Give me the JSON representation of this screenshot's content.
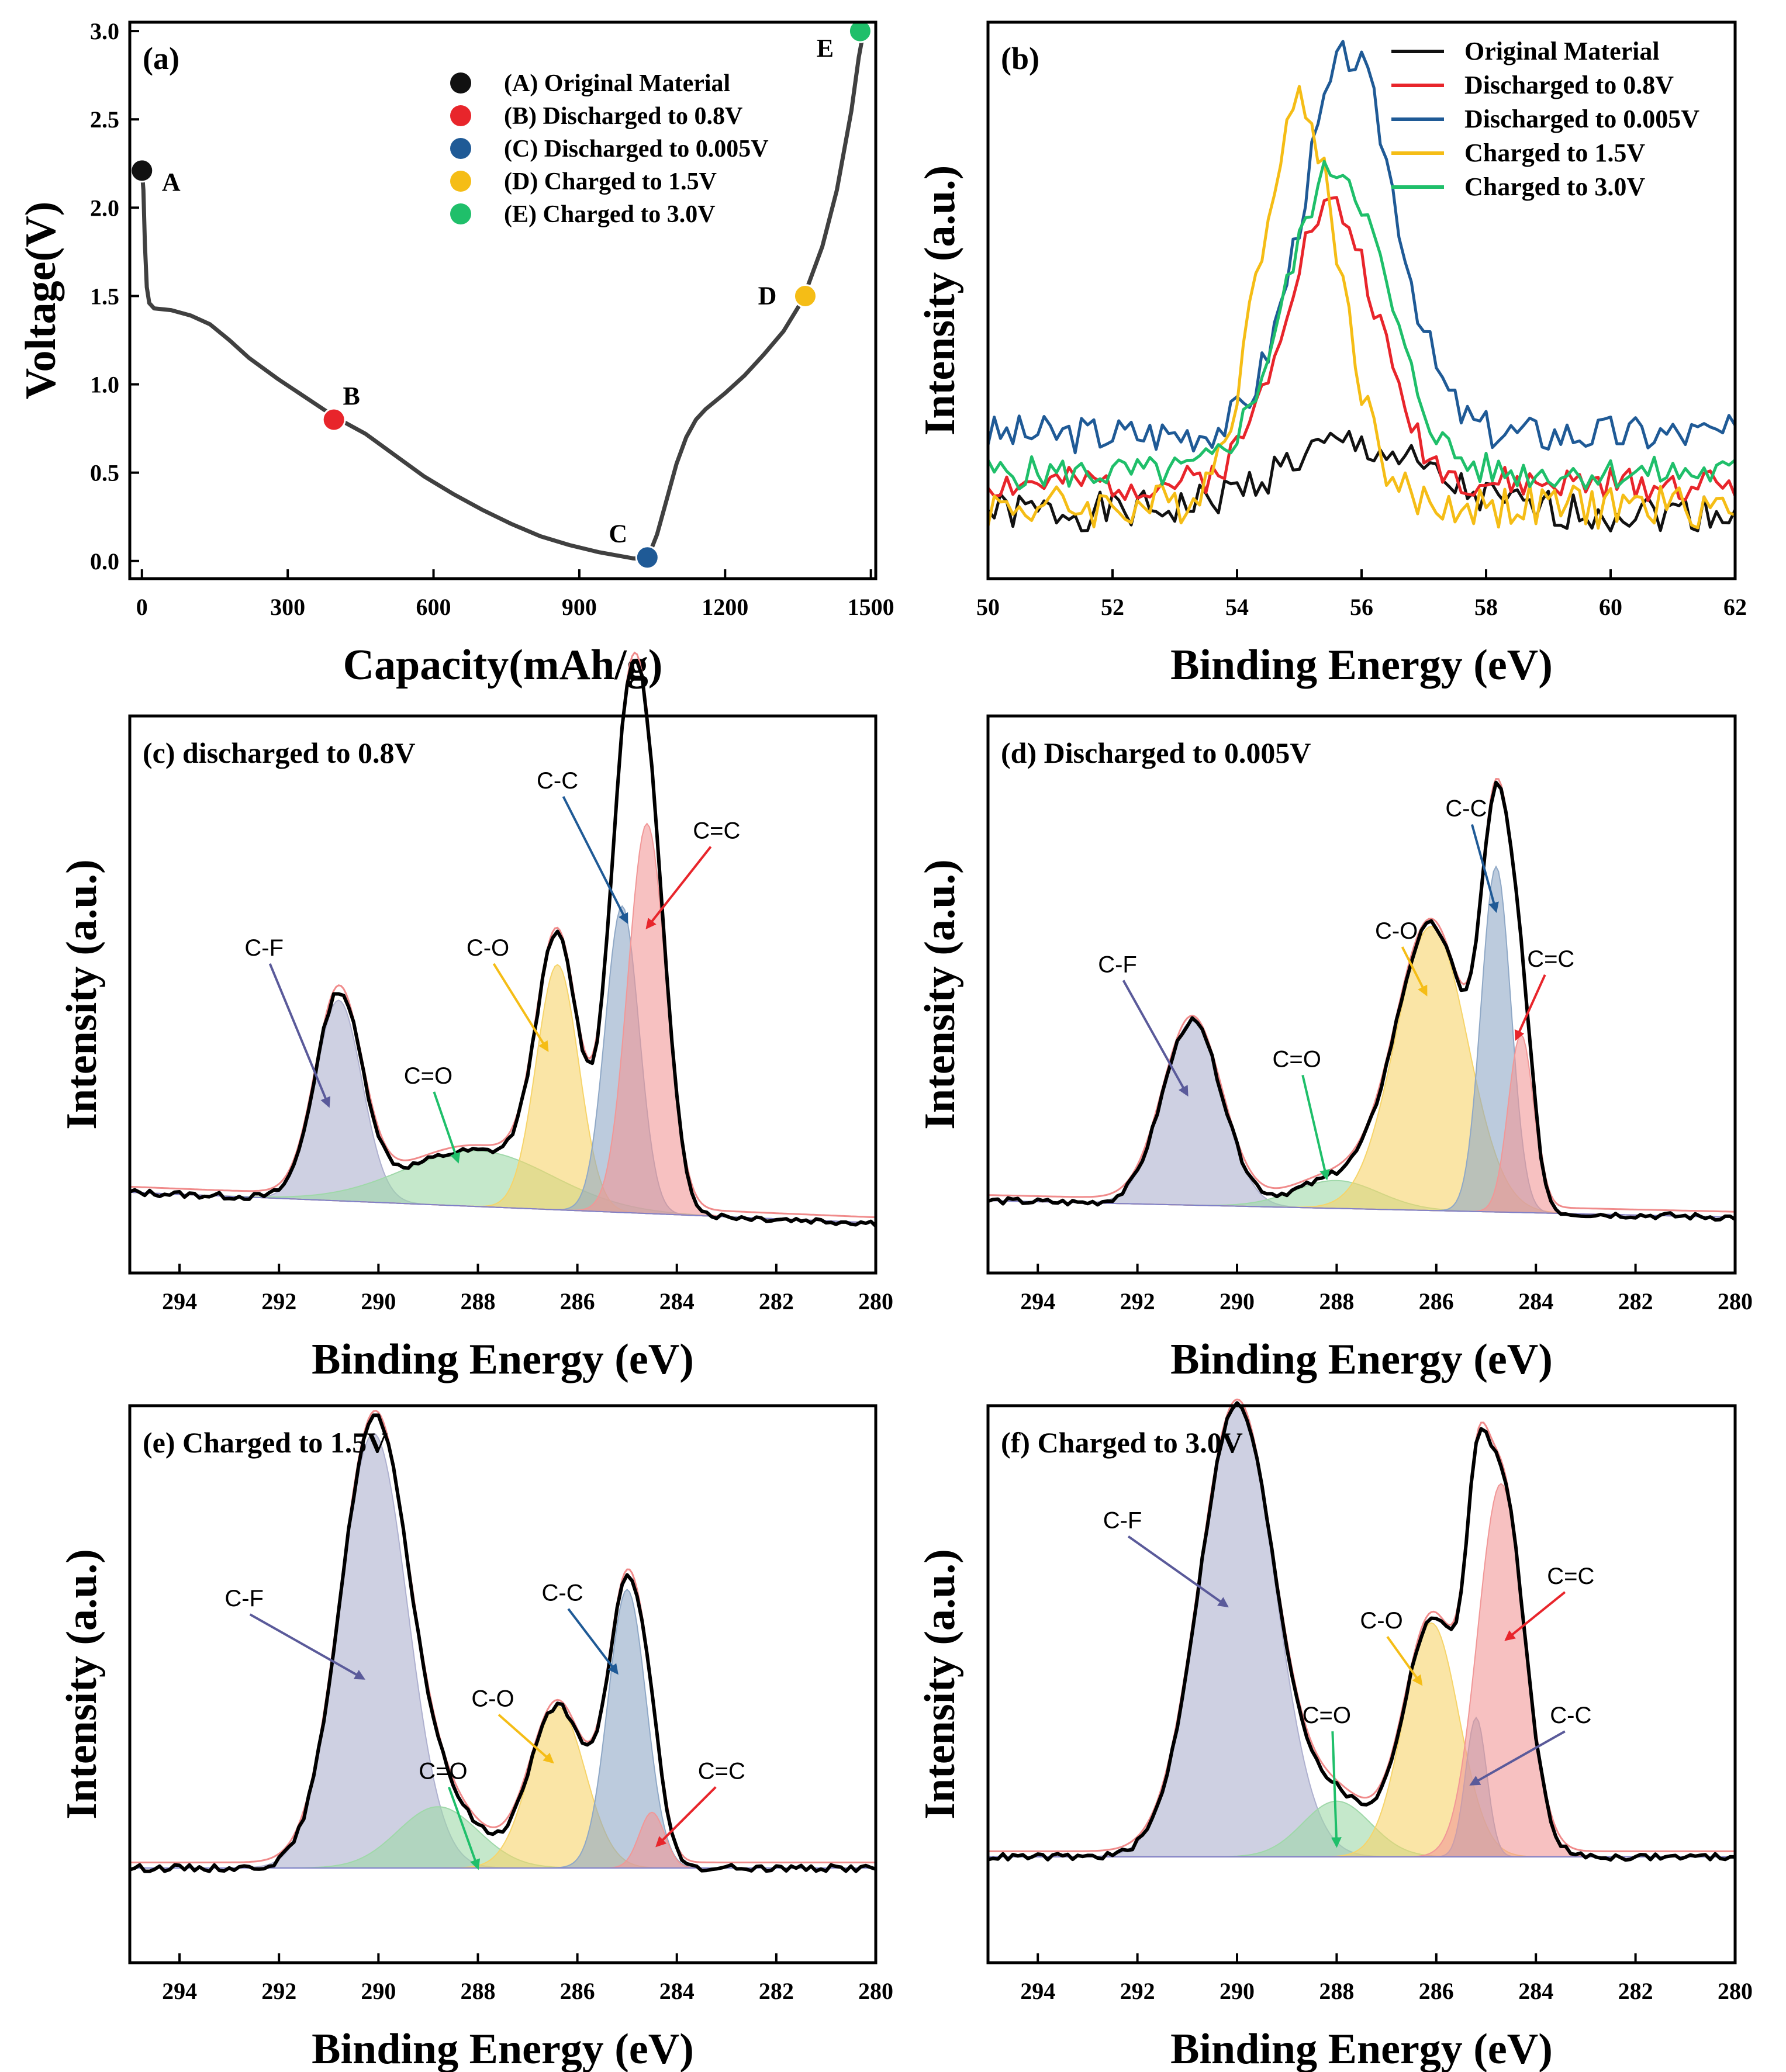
{
  "colors": {
    "black": "#111111",
    "red": "#e8252b",
    "blue": "#1f5a96",
    "yellow": "#f5bd16",
    "green": "#1fbf6a",
    "curve": "#404040",
    "fill_cf": "#aeb0cf",
    "fill_co": "#f6d46a",
    "fill_cc": "#8fa8c6",
    "fill_c2c": "#f19797",
    "fill_c2o": "#9fd8a9",
    "fit_pink": "#f08b8b",
    "arrow_cf": "#5a5a9a"
  },
  "chart_data": [
    {
      "id": "a",
      "type": "line",
      "panel_label": "(a)",
      "xlabel": "Capacity(mAh/g)",
      "ylabel": "Voltage(V)",
      "xlim": [
        -25,
        1510
      ],
      "ylim": [
        -0.1,
        3.05
      ],
      "xticks": [
        "0",
        "300",
        "600",
        "900",
        "1200",
        "1500"
      ],
      "xtick_values": [
        0,
        300,
        600,
        900,
        1200,
        1500
      ],
      "yticks": [
        "0.0",
        "0.5",
        "1.0",
        "1.5",
        "2.0",
        "2.5",
        "3.0"
      ],
      "ytick_values": [
        0,
        0.5,
        1,
        1.5,
        2,
        2.5,
        3
      ],
      "discharge": {
        "x": [
          0,
          3,
          6,
          10,
          15,
          25,
          60,
          100,
          140,
          180,
          220,
          280,
          340,
          400,
          460,
          520,
          580,
          640,
          700,
          760,
          820,
          880,
          940,
          980,
          1010,
          1040
        ],
        "y": [
          2.21,
          2.1,
          1.8,
          1.55,
          1.46,
          1.43,
          1.42,
          1.39,
          1.34,
          1.25,
          1.15,
          1.03,
          0.92,
          0.81,
          0.72,
          0.6,
          0.48,
          0.38,
          0.29,
          0.21,
          0.14,
          0.09,
          0.05,
          0.03,
          0.015,
          0.01
        ]
      },
      "charge": {
        "x": [
          1040,
          1060,
          1080,
          1100,
          1120,
          1140,
          1160,
          1200,
          1240,
          1280,
          1320,
          1360,
          1400,
          1430,
          1460,
          1475,
          1485
        ],
        "y": [
          0.01,
          0.15,
          0.35,
          0.55,
          0.7,
          0.8,
          0.86,
          0.95,
          1.05,
          1.17,
          1.3,
          1.48,
          1.78,
          2.1,
          2.55,
          2.85,
          3.0
        ]
      },
      "points": [
        {
          "label": "A",
          "x": 0,
          "y": 2.21,
          "color": "#111111",
          "legend": "(A) Original Material"
        },
        {
          "label": "B",
          "x": 395,
          "y": 0.8,
          "color": "#e8252b",
          "legend": "(B) Discharged to 0.8V"
        },
        {
          "label": "C",
          "x": 1040,
          "y": 0.02,
          "color": "#1f5a96",
          "legend": "(C) Discharged to 0.005V"
        },
        {
          "label": "D",
          "x": 1365,
          "y": 1.5,
          "color": "#f5bd16",
          "legend": "(D) Charged to 1.5V"
        },
        {
          "label": "E",
          "x": 1478,
          "y": 3.0,
          "color": "#1fbf6a",
          "legend": "(E) Charged to 3.0V"
        }
      ]
    },
    {
      "id": "b",
      "type": "line",
      "panel_label": "(b)",
      "xlabel": "Binding Energy (eV)",
      "ylabel": "Intensity (a.u.)",
      "xlim": [
        50,
        62
      ],
      "ylim": [
        0,
        1
      ],
      "xticks": [
        "50",
        "52",
        "54",
        "56",
        "58",
        "60",
        "62"
      ],
      "xtick_values": [
        50,
        52,
        54,
        56,
        58,
        60,
        62
      ],
      "series": [
        {
          "name": "Original Material",
          "color": "#111111",
          "base": 0.12,
          "amp": 0.12,
          "center": 55.8,
          "width": 1.2,
          "noise": 0.035,
          "seed": 1
        },
        {
          "name": "Discharged to 0.8V",
          "color": "#e8252b",
          "base": 0.17,
          "amp": 0.5,
          "center": 55.5,
          "width": 0.75,
          "noise": 0.03,
          "seed": 2
        },
        {
          "name": "Discharged to 0.005V",
          "color": "#1f5a96",
          "base": 0.26,
          "amp": 0.68,
          "center": 55.8,
          "width": 0.75,
          "noise": 0.035,
          "seed": 3
        },
        {
          "name": "Charged to 1.5V",
          "color": "#f5bd16",
          "base": 0.13,
          "amp": 0.72,
          "center": 55.0,
          "width": 0.65,
          "noise": 0.04,
          "seed": 4
        },
        {
          "name": "Charged to 3.0V",
          "color": "#1fbf6a",
          "base": 0.19,
          "amp": 0.55,
          "center": 55.6,
          "width": 0.8,
          "noise": 0.03,
          "seed": 5
        }
      ]
    },
    {
      "id": "c",
      "type": "area",
      "panel_label": "(c) discharged to 0.8V",
      "xlabel": "Binding Energy (eV)",
      "ylabel": "Intensity (a.u.)",
      "xlim": [
        295,
        280
      ],
      "ylim": [
        0,
        1
      ],
      "xticks": [
        "294",
        "292",
        "290",
        "288",
        "286",
        "284",
        "282",
        "280"
      ],
      "xtick_values": [
        294,
        292,
        290,
        288,
        286,
        284,
        282,
        280
      ],
      "baseline": {
        "high": 0.145,
        "low": 0.09
      },
      "components": [
        {
          "name": "C-F",
          "center": 290.8,
          "height": 0.36,
          "fwhm": 1.1,
          "color": "#aeb0cf"
        },
        {
          "name": "C=O",
          "center": 288.0,
          "height": 0.1,
          "fwhm": 3.5,
          "color": "#9fd8a9"
        },
        {
          "name": "C-O",
          "center": 286.4,
          "height": 0.44,
          "fwhm": 1.0,
          "color": "#f6d46a"
        },
        {
          "name": "C-C",
          "center": 285.1,
          "height": 0.55,
          "fwhm": 0.8,
          "color": "#8fa8c6"
        },
        {
          "name": "C=C",
          "center": 284.6,
          "height": 0.7,
          "fwhm": 0.9,
          "color": "#f19797"
        }
      ],
      "annotations": [
        {
          "text": "C-F",
          "x": 292.3,
          "y": 0.57,
          "ax": 291.0,
          "ay": 0.3,
          "color": "#5a5a9a"
        },
        {
          "text": "C=O",
          "x": 289.0,
          "y": 0.34,
          "ax": 288.4,
          "ay": 0.2,
          "color": "#1fbf6a"
        },
        {
          "text": "C-O",
          "x": 287.8,
          "y": 0.57,
          "ax": 286.6,
          "ay": 0.4,
          "color": "#f5bd16"
        },
        {
          "text": "C-C",
          "x": 286.4,
          "y": 0.87,
          "ax": 285.0,
          "ay": 0.63,
          "color": "#1f5a96"
        },
        {
          "text": "C=C",
          "x": 283.2,
          "y": 0.78,
          "ax": 284.6,
          "ay": 0.62,
          "color": "#e8252b"
        }
      ]
    },
    {
      "id": "d",
      "type": "area",
      "panel_label": "(d) Discharged to 0.005V",
      "xlabel": "Binding Energy (eV)",
      "ylabel": "Intensity (a.u.)",
      "xlim": [
        295,
        280
      ],
      "ylim": [
        0,
        1
      ],
      "xticks": [
        "294",
        "292",
        "290",
        "288",
        "286",
        "284",
        "282",
        "280"
      ],
      "xtick_values": [
        294,
        292,
        290,
        288,
        286,
        284,
        282,
        280
      ],
      "baseline": {
        "high": 0.13,
        "low": 0.1
      },
      "components": [
        {
          "name": "C-F",
          "center": 290.9,
          "height": 0.33,
          "fwhm": 1.4,
          "color": "#aeb0cf"
        },
        {
          "name": "C=O",
          "center": 288.0,
          "height": 0.05,
          "fwhm": 2.0,
          "color": "#9fd8a9"
        },
        {
          "name": "C-O",
          "center": 286.1,
          "height": 0.51,
          "fwhm": 1.7,
          "color": "#f6d46a"
        },
        {
          "name": "C-C",
          "center": 284.8,
          "height": 0.62,
          "fwhm": 0.7,
          "color": "#8fa8c6"
        },
        {
          "name": "C=C",
          "center": 284.3,
          "height": 0.32,
          "fwhm": 0.6,
          "color": "#f19797"
        }
      ],
      "annotations": [
        {
          "text": "C-F",
          "x": 292.4,
          "y": 0.54,
          "ax": 291.0,
          "ay": 0.32,
          "color": "#5a5a9a"
        },
        {
          "text": "C=O",
          "x": 288.8,
          "y": 0.37,
          "ax": 288.2,
          "ay": 0.17,
          "color": "#1fbf6a"
        },
        {
          "text": "C-O",
          "x": 286.8,
          "y": 0.6,
          "ax": 286.2,
          "ay": 0.5,
          "color": "#f5bd16"
        },
        {
          "text": "C-C",
          "x": 285.4,
          "y": 0.82,
          "ax": 284.8,
          "ay": 0.65,
          "color": "#1f5a96"
        },
        {
          "text": "C=C",
          "x": 283.7,
          "y": 0.55,
          "ax": 284.4,
          "ay": 0.42,
          "color": "#e8252b"
        }
      ]
    },
    {
      "id": "e",
      "type": "area",
      "panel_label": "(e) Charged to 1.5V",
      "xlabel": "Binding Energy (eV)",
      "ylabel": "Intensity (a.u.)",
      "xlim": [
        295,
        280
      ],
      "ylim": [
        0,
        1
      ],
      "xticks": [
        "294",
        "292",
        "290",
        "288",
        "286",
        "284",
        "282",
        "280"
      ],
      "xtick_values": [
        294,
        292,
        290,
        288,
        286,
        284,
        282,
        280
      ],
      "baseline": {
        "high": 0.17,
        "low": 0.17
      },
      "components": [
        {
          "name": "C-F",
          "center": 290.1,
          "height": 0.78,
          "fwhm": 1.6,
          "color": "#aeb0cf"
        },
        {
          "name": "C=O",
          "center": 288.8,
          "height": 0.11,
          "fwhm": 1.9,
          "color": "#9fd8a9"
        },
        {
          "name": "C-O",
          "center": 286.4,
          "height": 0.29,
          "fwhm": 1.3,
          "color": "#f6d46a"
        },
        {
          "name": "C-C",
          "center": 285.0,
          "height": 0.5,
          "fwhm": 0.9,
          "color": "#8fa8c6"
        },
        {
          "name": "C=C",
          "center": 284.5,
          "height": 0.1,
          "fwhm": 0.6,
          "color": "#f19797"
        }
      ],
      "annotations": [
        {
          "text": "C-F",
          "x": 292.7,
          "y": 0.64,
          "ax": 290.3,
          "ay": 0.51,
          "color": "#5a5a9a"
        },
        {
          "text": "C=O",
          "x": 288.7,
          "y": 0.33,
          "ax": 288.0,
          "ay": 0.17,
          "color": "#1fbf6a"
        },
        {
          "text": "C-O",
          "x": 287.7,
          "y": 0.46,
          "ax": 286.5,
          "ay": 0.36,
          "color": "#f5bd16"
        },
        {
          "text": "C-C",
          "x": 286.3,
          "y": 0.65,
          "ax": 285.2,
          "ay": 0.52,
          "color": "#1f5a96"
        },
        {
          "text": "C=C",
          "x": 283.1,
          "y": 0.33,
          "ax": 284.4,
          "ay": 0.21,
          "color": "#e8252b"
        }
      ]
    },
    {
      "id": "f",
      "type": "area",
      "panel_label": "(f) Charged to 3.0V",
      "xlabel": "Binding Energy (eV)",
      "ylabel": "Intensity (a.u.)",
      "xlim": [
        295,
        280
      ],
      "ylim": [
        0,
        1
      ],
      "xticks": [
        "294",
        "292",
        "290",
        "288",
        "286",
        "284",
        "282",
        "280"
      ],
      "xtick_values": [
        294,
        292,
        290,
        288,
        286,
        284,
        282,
        280
      ],
      "baseline": {
        "high": 0.19,
        "low": 0.19
      },
      "components": [
        {
          "name": "C-F",
          "center": 290.0,
          "height": 0.81,
          "fwhm": 1.8,
          "color": "#aeb0cf"
        },
        {
          "name": "C=O",
          "center": 288.0,
          "height": 0.1,
          "fwhm": 1.6,
          "color": "#9fd8a9"
        },
        {
          "name": "C-O",
          "center": 286.1,
          "height": 0.42,
          "fwhm": 1.3,
          "color": "#f6d46a"
        },
        {
          "name": "C-C",
          "center": 285.2,
          "height": 0.25,
          "fwhm": 0.5,
          "color": "#8fa8c6"
        },
        {
          "name": "C=C",
          "center": 284.7,
          "height": 0.67,
          "fwhm": 1.1,
          "color": "#f19797"
        }
      ],
      "annotations": [
        {
          "text": "C-F",
          "x": 292.3,
          "y": 0.78,
          "ax": 290.2,
          "ay": 0.64,
          "color": "#5a5a9a"
        },
        {
          "text": "C=O",
          "x": 288.2,
          "y": 0.43,
          "ax": 288.0,
          "ay": 0.21,
          "color": "#1fbf6a"
        },
        {
          "text": "C-O",
          "x": 287.1,
          "y": 0.6,
          "ax": 286.3,
          "ay": 0.5,
          "color": "#f5bd16"
        },
        {
          "text": "C-C",
          "x": 283.3,
          "y": 0.43,
          "ax": 285.3,
          "ay": 0.32,
          "color": "#5a5a9a"
        },
        {
          "text": "C=C",
          "x": 283.3,
          "y": 0.68,
          "ax": 284.6,
          "ay": 0.58,
          "color": "#e8252b"
        }
      ]
    }
  ]
}
